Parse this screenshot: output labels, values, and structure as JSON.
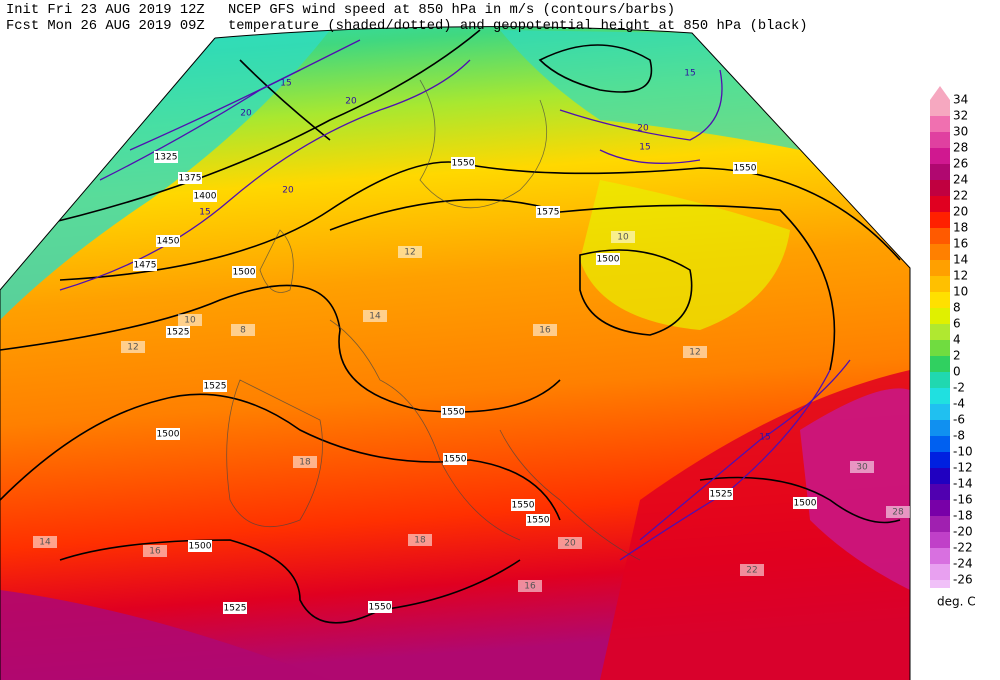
{
  "header": {
    "init": "Init  Fri 23 AUG 2019 12Z",
    "fcst": "Fcst Mon 26 AUG 2019 09Z",
    "line1": "NCEP GFS wind speed at 850 hPa in m/s (contours/barbs)",
    "line2": "temperature (shaded/dotted) and geopotential height at 850 hPa (black)"
  },
  "colorbar": {
    "levels": [
      34,
      32,
      30,
      28,
      26,
      24,
      22,
      20,
      18,
      16,
      14,
      12,
      10,
      8,
      6,
      4,
      2,
      0,
      -2,
      -4,
      -6,
      -8,
      -10,
      -12,
      -14,
      -16,
      -18,
      -20,
      -22,
      -24,
      -26
    ],
    "colors": [
      "#f6a8c0",
      "#f070b0",
      "#e040a0",
      "#d01890",
      "#b00870",
      "#c00040",
      "#e00020",
      "#ff2000",
      "#ff5a00",
      "#ff8000",
      "#ffa000",
      "#ffc000",
      "#ffe000",
      "#e0f000",
      "#b0e830",
      "#70dc40",
      "#30d060",
      "#20d8b0",
      "#20e0e0",
      "#20c0f0",
      "#1090f0",
      "#0060f0",
      "#0020e0",
      "#2000c0",
      "#5000b0",
      "#7800a8",
      "#a020b0",
      "#c040c8",
      "#d870e0",
      "#e8a0f0",
      "#f0c0f8"
    ],
    "unit": "deg. C"
  },
  "map": {
    "labels": [
      "1550",
      "1575",
      "1550",
      "1500",
      "1500",
      "1525",
      "1525",
      "1500",
      "1550",
      "1550",
      "1550",
      "1550",
      "1500",
      "1525",
      "1550",
      "1500",
      "1525",
      "1325",
      "1375",
      "1400",
      "1450",
      "1475",
      "20",
      "20",
      "15",
      "15",
      "20",
      "15",
      "15",
      "20",
      "15",
      "16",
      "14",
      "12",
      "10",
      "8",
      "12",
      "18",
      "16",
      "14",
      "20",
      "22",
      "28",
      "30",
      "16",
      "18",
      "10",
      "12"
    ]
  }
}
